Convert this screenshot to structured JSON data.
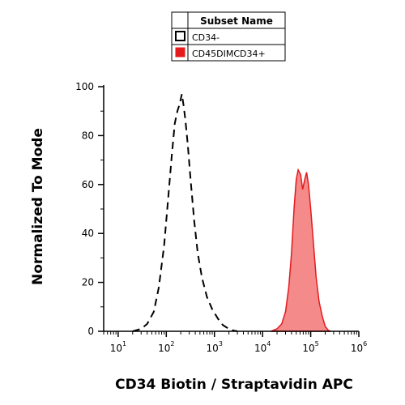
{
  "chart_data": {
    "type": "area",
    "xlabel": "CD34 Biotin / Straptavidin APC",
    "ylabel": "Normalized To Mode",
    "x_scale": "log",
    "xlim": [
      5,
      1000000
    ],
    "ylim": [
      0,
      100
    ],
    "x_ticks": [
      {
        "value": 10,
        "base": "10",
        "exp": "1"
      },
      {
        "value": 100,
        "base": "10",
        "exp": "2"
      },
      {
        "value": 1000,
        "base": "10",
        "exp": "3"
      },
      {
        "value": 10000,
        "base": "10",
        "exp": "4"
      },
      {
        "value": 100000,
        "base": "10",
        "exp": "5"
      },
      {
        "value": 1000000,
        "base": "10",
        "exp": "6"
      }
    ],
    "y_ticks": [
      "0",
      "20",
      "40",
      "60",
      "80",
      "100"
    ],
    "grid": false,
    "legend": {
      "title": "Subset Name",
      "placement": "top-center",
      "entries": [
        "CD34-",
        "CD45DIMCD34+"
      ]
    },
    "series": [
      {
        "name": "CD34-",
        "style": "dashed-outline",
        "color": "#000000",
        "x": [
          20,
          30,
          40,
          55,
          70,
          90,
          110,
          130,
          150,
          170,
          190,
          210,
          230,
          250,
          280,
          320,
          380,
          450,
          550,
          700,
          900,
          1200,
          1500,
          2000,
          2500,
          3000
        ],
        "y": [
          0,
          1,
          3,
          8,
          18,
          35,
          55,
          72,
          85,
          90,
          93,
          97,
          92,
          86,
          76,
          62,
          45,
          32,
          22,
          14,
          9,
          5,
          2.5,
          1,
          0.3,
          0
        ]
      },
      {
        "name": "CD45DIMCD34+",
        "style": "filled",
        "color": "#e41a1c",
        "fill": "#f58a8a",
        "x": [
          15000,
          20000,
          25000,
          30000,
          35000,
          40000,
          45000,
          50000,
          55000,
          62000,
          68000,
          75000,
          82000,
          90000,
          100000,
          115000,
          130000,
          150000,
          175000,
          200000,
          230000,
          260000
        ],
        "y": [
          0,
          1,
          3,
          8,
          18,
          32,
          50,
          62,
          66,
          64,
          58,
          62,
          65,
          60,
          50,
          35,
          22,
          12,
          6,
          2,
          0.5,
          0
        ]
      }
    ]
  }
}
